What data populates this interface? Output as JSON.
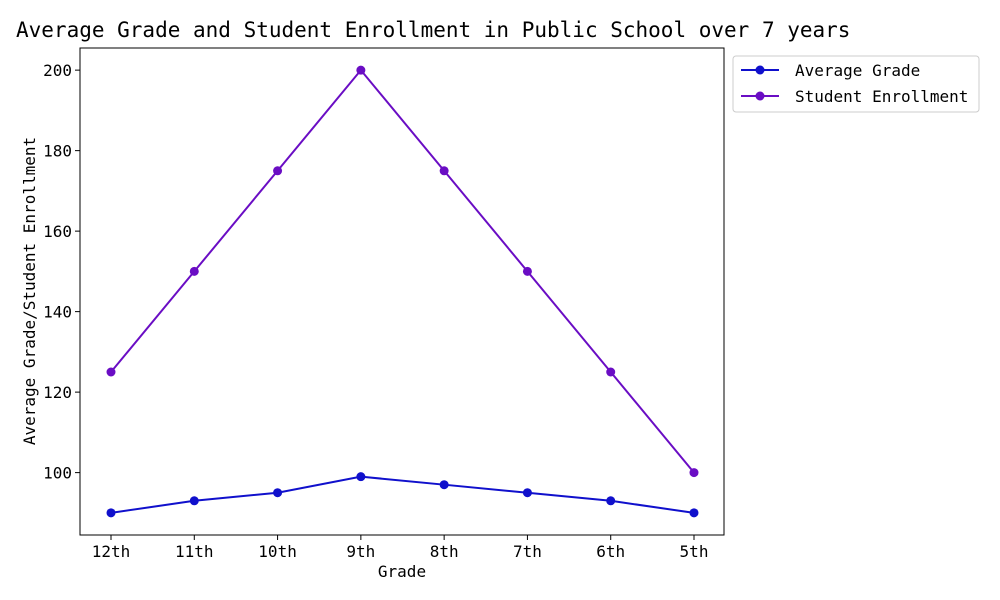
{
  "chart_data": {
    "type": "line",
    "title": "Average Grade and Student Enrollment in Public School over 7 years",
    "xlabel": "Grade",
    "ylabel": "Average Grade/Student Enrollment",
    "categories": [
      "12th",
      "11th",
      "10th",
      "9th",
      "8th",
      "7th",
      "6th",
      "5th"
    ],
    "ylim": [
      84.5,
      205.5
    ],
    "yticks": [
      100,
      120,
      140,
      160,
      180,
      200
    ],
    "grid": false,
    "legend_position": "outside-top-right",
    "series": [
      {
        "name": "Average Grade",
        "color": "#1010cc",
        "marker": "circle",
        "values": [
          90,
          93,
          95,
          99,
          97,
          95,
          93,
          90
        ]
      },
      {
        "name": "Student Enrollment",
        "color": "#6a0dc4",
        "marker": "circle",
        "values": [
          125,
          150,
          175,
          200,
          175,
          150,
          125,
          100
        ]
      }
    ]
  }
}
